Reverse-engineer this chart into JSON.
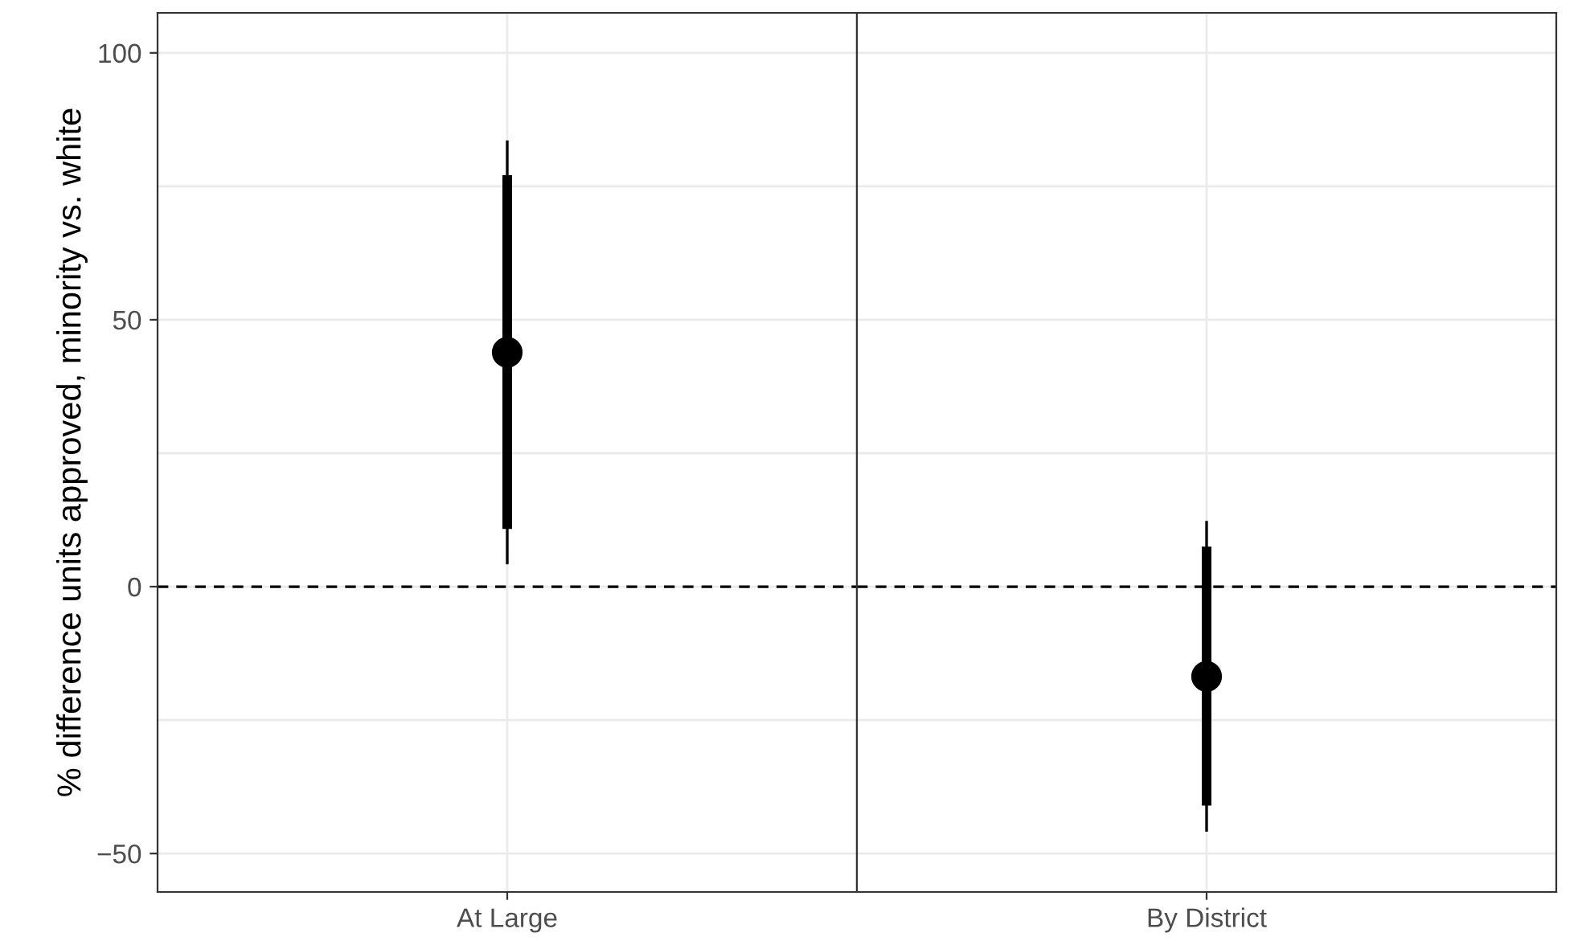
{
  "chart_data": [
    {
      "type": "scatter",
      "ylabel": "% difference units approved, minority vs. white",
      "categories": [
        "At Large"
      ],
      "series": [
        {
          "type": "bar",
          "color": "#000000",
          "base": [
            10.8
          ],
          "values": [
            66.3
          ]
        },
        {
          "color": "#000000",
          "marker": "circle",
          "values": [
            43.9
          ],
          "errors": [
            [
              4.2,
              83.6
            ]
          ]
        }
      ],
      "ylim": [
        -57.2,
        107.5
      ],
      "yticks": [
        -50,
        {
          "value": -25,
          "label": null
        },
        0,
        {
          "value": 25,
          "label": null
        },
        50,
        {
          "value": 75,
          "label": null
        },
        100
      ],
      "ref_lines": [
        {
          "axis": "y",
          "value": 0,
          "line_style": "dashed",
          "color": "#000000"
        }
      ],
      "grid": true
    },
    {
      "type": "scatter",
      "categories": [
        "By District"
      ],
      "series": [
        {
          "type": "bar",
          "color": "#000000",
          "base": [
            -41.0
          ],
          "values": [
            48.5
          ]
        },
        {
          "color": "#000000",
          "marker": "circle",
          "values": [
            -16.8
          ],
          "errors": [
            [
              -45.9,
              12.3
            ]
          ]
        }
      ],
      "ylim": [
        -57.2,
        107.5
      ],
      "yticks": [
        -50,
        {
          "value": -25,
          "label": null
        },
        0,
        {
          "value": 25,
          "label": null
        },
        50,
        {
          "value": 75,
          "label": null
        },
        100
      ],
      "ref_lines": [
        {
          "axis": "y",
          "value": 0,
          "line_style": "dashed",
          "color": "#000000"
        }
      ],
      "grid": true,
      "tick_labels": "x"
    }
  ]
}
